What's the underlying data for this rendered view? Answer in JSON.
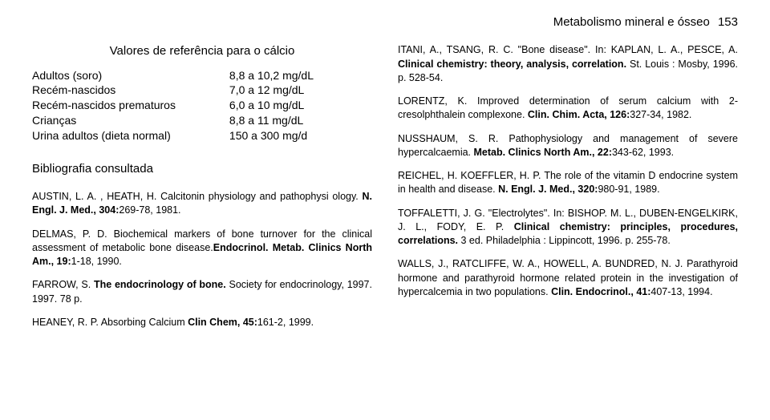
{
  "header": {
    "title": "Metabolismo mineral e ósseo",
    "page": "153"
  },
  "refTable": {
    "title": "Valores de referência para o cálcio",
    "rows": [
      {
        "label": "Adultos (soro)",
        "value": "8,8 a 10,2 mg/dL"
      },
      {
        "label": "Recém-nascidos",
        "value": "7,0 a 12 mg/dL"
      },
      {
        "label": "Recém-nascidos prematuros",
        "value": "6,0 a 10 mg/dL"
      },
      {
        "label": "Crianças",
        "value": "8,8 a 11 mg/dL"
      },
      {
        "label": "Urina adultos (dieta normal)",
        "value": "150 a 300 mg/d"
      }
    ]
  },
  "biblioTitle": "Bibliografia consultada",
  "leftRefs": [
    {
      "a": "AUSTIN, L. A. , HEATH, H. Calcitonin physiology and pathophysi ology. ",
      "j": "N. Engl. J. Med., 304:",
      "t": "269-78, 1981."
    },
    {
      "a": "DELMAS, P. D. Biochemical markers of bone turnover for the clinical assessment of metabolic bone disease.",
      "j": "Endocrinol. Metab. Clinics North Am., 19:",
      "t": "1-18, 1990."
    },
    {
      "a": "FARROW, S. ",
      "j": "The endocrinology of bone.",
      "t": " Society for endocrinology, 1997. 1997. 78 p."
    },
    {
      "a": "HEANEY, R. P. Absorbing Calcium ",
      "j": "Clin Chem, 45:",
      "t": "161-2, 1999."
    }
  ],
  "rightRefs": [
    {
      "a": "ITANI, A., TSANG, R. C. \"Bone disease\". In: KAPLAN, L. A., PESCE, A. ",
      "j": "Clinical chemistry: theory, analysis, correlation.",
      "t": " St. Louis : Mosby, 1996. p. 528-54."
    },
    {
      "a": "LORENTZ, K. Improved determination of serum calcium with 2-cresolphthalein complexone. ",
      "j": "Clin. Chim. Acta, 126:",
      "t": "327-34, 1982."
    },
    {
      "a": "NUSSHAUM, S. R. Pathophysiology and management of severe hypercalcaemia. ",
      "j": "Metab. Clinics North Am., 22:",
      "t": "343-62, 1993."
    },
    {
      "a": "REICHEL, H. KOEFFLER, H. P. The role of the vitamin D endocrine system in health and disease. ",
      "j": "N. Engl. J. Med., 320:",
      "t": "980-91, 1989."
    },
    {
      "a": "TOFFALETTI, J. G. \"Electrolytes\". In: BISHOP. M. L., DUBEN-ENGELKIRK, J. L., FODY, E. P. ",
      "j": "Clinical chemistry: principles, procedures, correlations.",
      "t": " 3 ed. Philadelphia : Lippincott, 1996. p. 255-78."
    },
    {
      "a": "WALLS, J., RATCLIFFE, W. A., HOWELL, A. BUNDRED, N. J. Parathyroid hormone and parathyroid hormone related protein in the investigation of hypercalcemia in two populations. ",
      "j": "Clin. Endocrinol., 41:",
      "t": "407-13, 1994."
    }
  ]
}
